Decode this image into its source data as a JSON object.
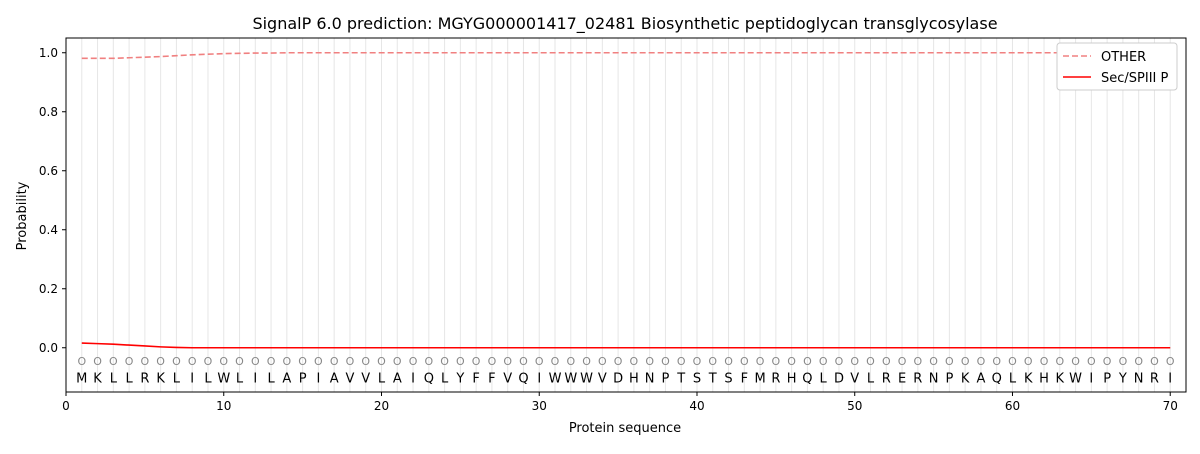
{
  "chart_data": {
    "type": "line",
    "title": "SignalP 6.0 prediction: MGYG000001417_02481 Biosynthetic peptidoglycan transglycosylase",
    "xlabel": "Protein sequence",
    "ylabel": "Probability",
    "xlim": [
      0,
      71
    ],
    "ylim": [
      -0.15,
      1.05
    ],
    "xticks": [
      0,
      10,
      20,
      30,
      40,
      50,
      60,
      70
    ],
    "yticks": [
      0.0,
      0.2,
      0.4,
      0.6,
      0.8,
      1.0
    ],
    "grid": "vertical lines at each residue",
    "legend_position": "top-right",
    "sequence": [
      "M",
      "K",
      "L",
      "L",
      "R",
      "K",
      "L",
      "I",
      "L",
      "W",
      "L",
      "I",
      "L",
      "A",
      "P",
      "I",
      "A",
      "V",
      "V",
      "L",
      "A",
      "I",
      "Q",
      "L",
      "Y",
      "F",
      "F",
      "V",
      "Q",
      "I",
      "W",
      "W",
      "W",
      "V",
      "D",
      "H",
      "N",
      "P",
      "T",
      "S",
      "T",
      "S",
      "F",
      "M",
      "R",
      "H",
      "Q",
      "L",
      "D",
      "V",
      "L",
      "R",
      "E",
      "R",
      "N",
      "P",
      "K",
      "A",
      "Q",
      "L",
      "K",
      "H",
      "K",
      "W",
      "I",
      "P",
      "Y",
      "N",
      "R",
      "I"
    ],
    "region_label": "O",
    "series": [
      {
        "name": "OTHER",
        "color": "#f08080",
        "style": "dashed",
        "x": [
          1,
          2,
          3,
          4,
          5,
          6,
          7,
          8,
          9,
          10,
          11,
          12,
          13,
          14,
          15,
          70
        ],
        "values": [
          0.981,
          0.981,
          0.981,
          0.983,
          0.985,
          0.987,
          0.99,
          0.993,
          0.995,
          0.997,
          0.998,
          0.999,
          0.999,
          1.0,
          1.0,
          1.0
        ]
      },
      {
        "name": "Sec/SPIII P",
        "color": "#ff0000",
        "style": "solid",
        "x": [
          1,
          2,
          3,
          4,
          5,
          6,
          7,
          8,
          9,
          10,
          70
        ],
        "values": [
          0.016,
          0.014,
          0.012,
          0.009,
          0.006,
          0.003,
          0.001,
          0.0,
          0.0,
          0.0,
          0.0
        ]
      }
    ]
  }
}
